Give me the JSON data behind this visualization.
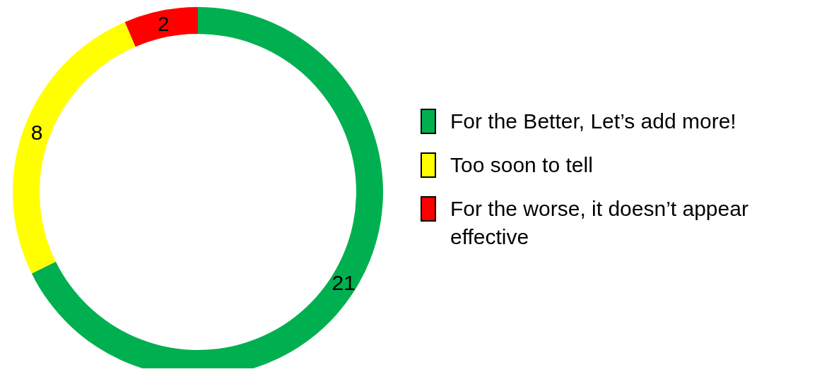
{
  "chart_data": {
    "type": "donut",
    "categories": [
      "For the Better, Let’s add more!",
      "Too soon to tell",
      "For the worse, it doesn’t appear effective"
    ],
    "values": [
      21,
      8,
      2
    ],
    "colors": [
      "#00b050",
      "#ffff00",
      "#ff0000"
    ],
    "data_labels": true,
    "legend": "right"
  }
}
